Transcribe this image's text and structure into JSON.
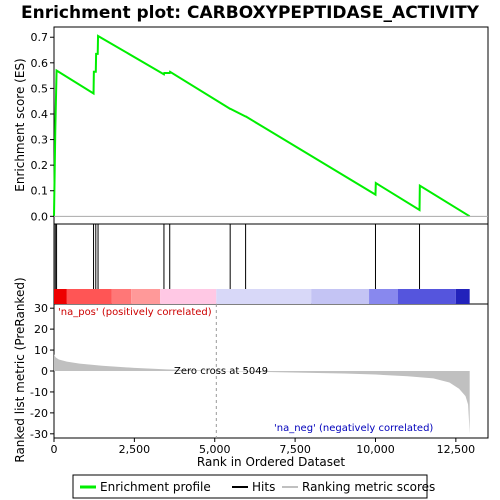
{
  "chart_data": {
    "type": "line",
    "title": "Enrichment plot: CARBOXYPEPTIDASE_ACTIVITY",
    "xlabel": "Rank in Ordered Dataset",
    "xlim": [
      0,
      13500
    ],
    "xticks": [
      0,
      2500,
      5000,
      7500,
      10000,
      12500
    ],
    "xtick_labels": [
      "0",
      "2,500",
      "5,000",
      "7,500",
      "10,000",
      "12,500"
    ],
    "top_panel": {
      "ylabel": "Enrichment score (ES)",
      "ylim": [
        -0.03,
        0.74
      ],
      "yticks": [
        0.0,
        0.1,
        0.2,
        0.3,
        0.4,
        0.5,
        0.6,
        0.7
      ],
      "ytick_labels": [
        "0.0",
        "0.1",
        "0.2",
        "0.3",
        "0.4",
        "0.5",
        "0.6",
        "0.7"
      ],
      "series": [
        {
          "name": "Enrichment profile",
          "color": "#00ee00",
          "points": [
            [
              0,
              0.0
            ],
            [
              40,
              0.335
            ],
            [
              80,
              0.57
            ],
            [
              1230,
              0.48
            ],
            [
              1240,
              0.565
            ],
            [
              1300,
              0.565
            ],
            [
              1310,
              0.635
            ],
            [
              1360,
              0.635
            ],
            [
              1370,
              0.705
            ],
            [
              3420,
              0.555
            ],
            [
              3430,
              0.56
            ],
            [
              3600,
              0.56
            ],
            [
              3610,
              0.565
            ],
            [
              5480,
              0.42
            ],
            [
              5490,
              0.42
            ],
            [
              5960,
              0.39
            ],
            [
              5970,
              0.39
            ],
            [
              10000,
              0.085
            ],
            [
              10010,
              0.13
            ],
            [
              11370,
              0.025
            ],
            [
              11380,
              0.12
            ],
            [
              12930,
              0.0
            ]
          ]
        }
      ]
    },
    "hits_panel": {
      "hit_positions": [
        40,
        80,
        1230,
        1300,
        1370,
        3420,
        3600,
        5480,
        5960,
        10000,
        11370
      ]
    },
    "color_bar": {
      "segments": [
        {
          "from": 0,
          "to": 400,
          "color": "#ee0000"
        },
        {
          "from": 400,
          "to": 1800,
          "color": "#ff5555"
        },
        {
          "from": 1800,
          "to": 2400,
          "color": "#ff7777"
        },
        {
          "from": 2400,
          "to": 3300,
          "color": "#ff9999"
        },
        {
          "from": 3300,
          "to": 5049,
          "color": "#ffc8e4"
        },
        {
          "from": 5049,
          "to": 8000,
          "color": "#d8d8f8"
        },
        {
          "from": 8000,
          "to": 9800,
          "color": "#c4c4f4"
        },
        {
          "from": 9800,
          "to": 10700,
          "color": "#8888ee"
        },
        {
          "from": 10700,
          "to": 12500,
          "color": "#5555dd"
        },
        {
          "from": 12500,
          "to": 12930,
          "color": "#2222bb"
        }
      ]
    },
    "bottom_panel": {
      "ylabel": "Ranked list metric (PreRanked)",
      "ylim": [
        -32,
        32
      ],
      "yticks": [
        -30,
        -20,
        -10,
        0,
        10,
        20,
        30
      ],
      "ytick_labels": [
        "-30",
        "-20",
        "-10",
        "0",
        "10",
        "20",
        "30"
      ],
      "series": [
        {
          "name": "Ranking metric scores",
          "color": "#c0c0c0",
          "points": [
            [
              0,
              8.0
            ],
            [
              50,
              6.5
            ],
            [
              150,
              5.5
            ],
            [
              400,
              4.5
            ],
            [
              800,
              3.5
            ],
            [
              1500,
              2.5
            ],
            [
              2500,
              1.5
            ],
            [
              3500,
              0.8
            ],
            [
              5049,
              0.0
            ],
            [
              7000,
              -0.6
            ],
            [
              9000,
              -1.2
            ],
            [
              10000,
              -1.7
            ],
            [
              11000,
              -2.5
            ],
            [
              11800,
              -3.5
            ],
            [
              12300,
              -5.5
            ],
            [
              12600,
              -8.5
            ],
            [
              12800,
              -12.0
            ],
            [
              12880,
              -16.0
            ],
            [
              12910,
              -24.0
            ],
            [
              12930,
              -30.0
            ]
          ]
        }
      ],
      "zero_cross": 5049
    },
    "annotations": {
      "pos_label": "'na_pos' (positively correlated)",
      "neg_label": "'na_neg' (negatively correlated)",
      "zero_label": "Zero cross at 5049"
    },
    "legend": {
      "placement": "bottom",
      "entries": [
        {
          "label": "Enrichment profile",
          "color": "#00ee00"
        },
        {
          "label": "Hits",
          "color": "#000000"
        },
        {
          "label": "Ranking metric scores",
          "color": "#c0c0c0"
        }
      ]
    }
  }
}
